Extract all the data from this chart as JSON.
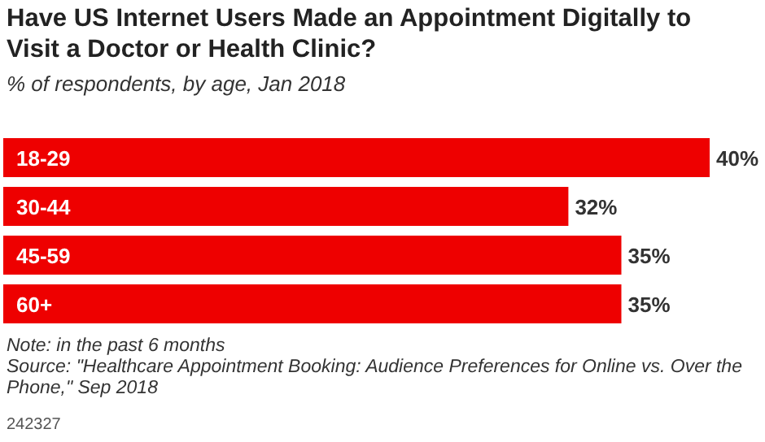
{
  "chart_data": {
    "type": "bar",
    "orientation": "horizontal",
    "title": "Have US Internet Users Made an Appointment Digitally to Visit a Doctor or Health Clinic?",
    "subtitle": "% of respondents, by age, Jan 2018",
    "categories": [
      "18-29",
      "30-44",
      "45-59",
      "60+"
    ],
    "values": [
      40,
      32,
      35,
      35
    ],
    "color": "#ee0000",
    "data_labels": true,
    "value_labels": [
      "40%",
      "32%",
      "35%",
      "35%"
    ],
    "annotations": [
      "Note: in the past 6 months",
      "Source: \"Healthcare Appointment Booking: Audience Preferences for Online vs. Over the Phone,\" Sep 2018",
      "242327"
    ]
  }
}
